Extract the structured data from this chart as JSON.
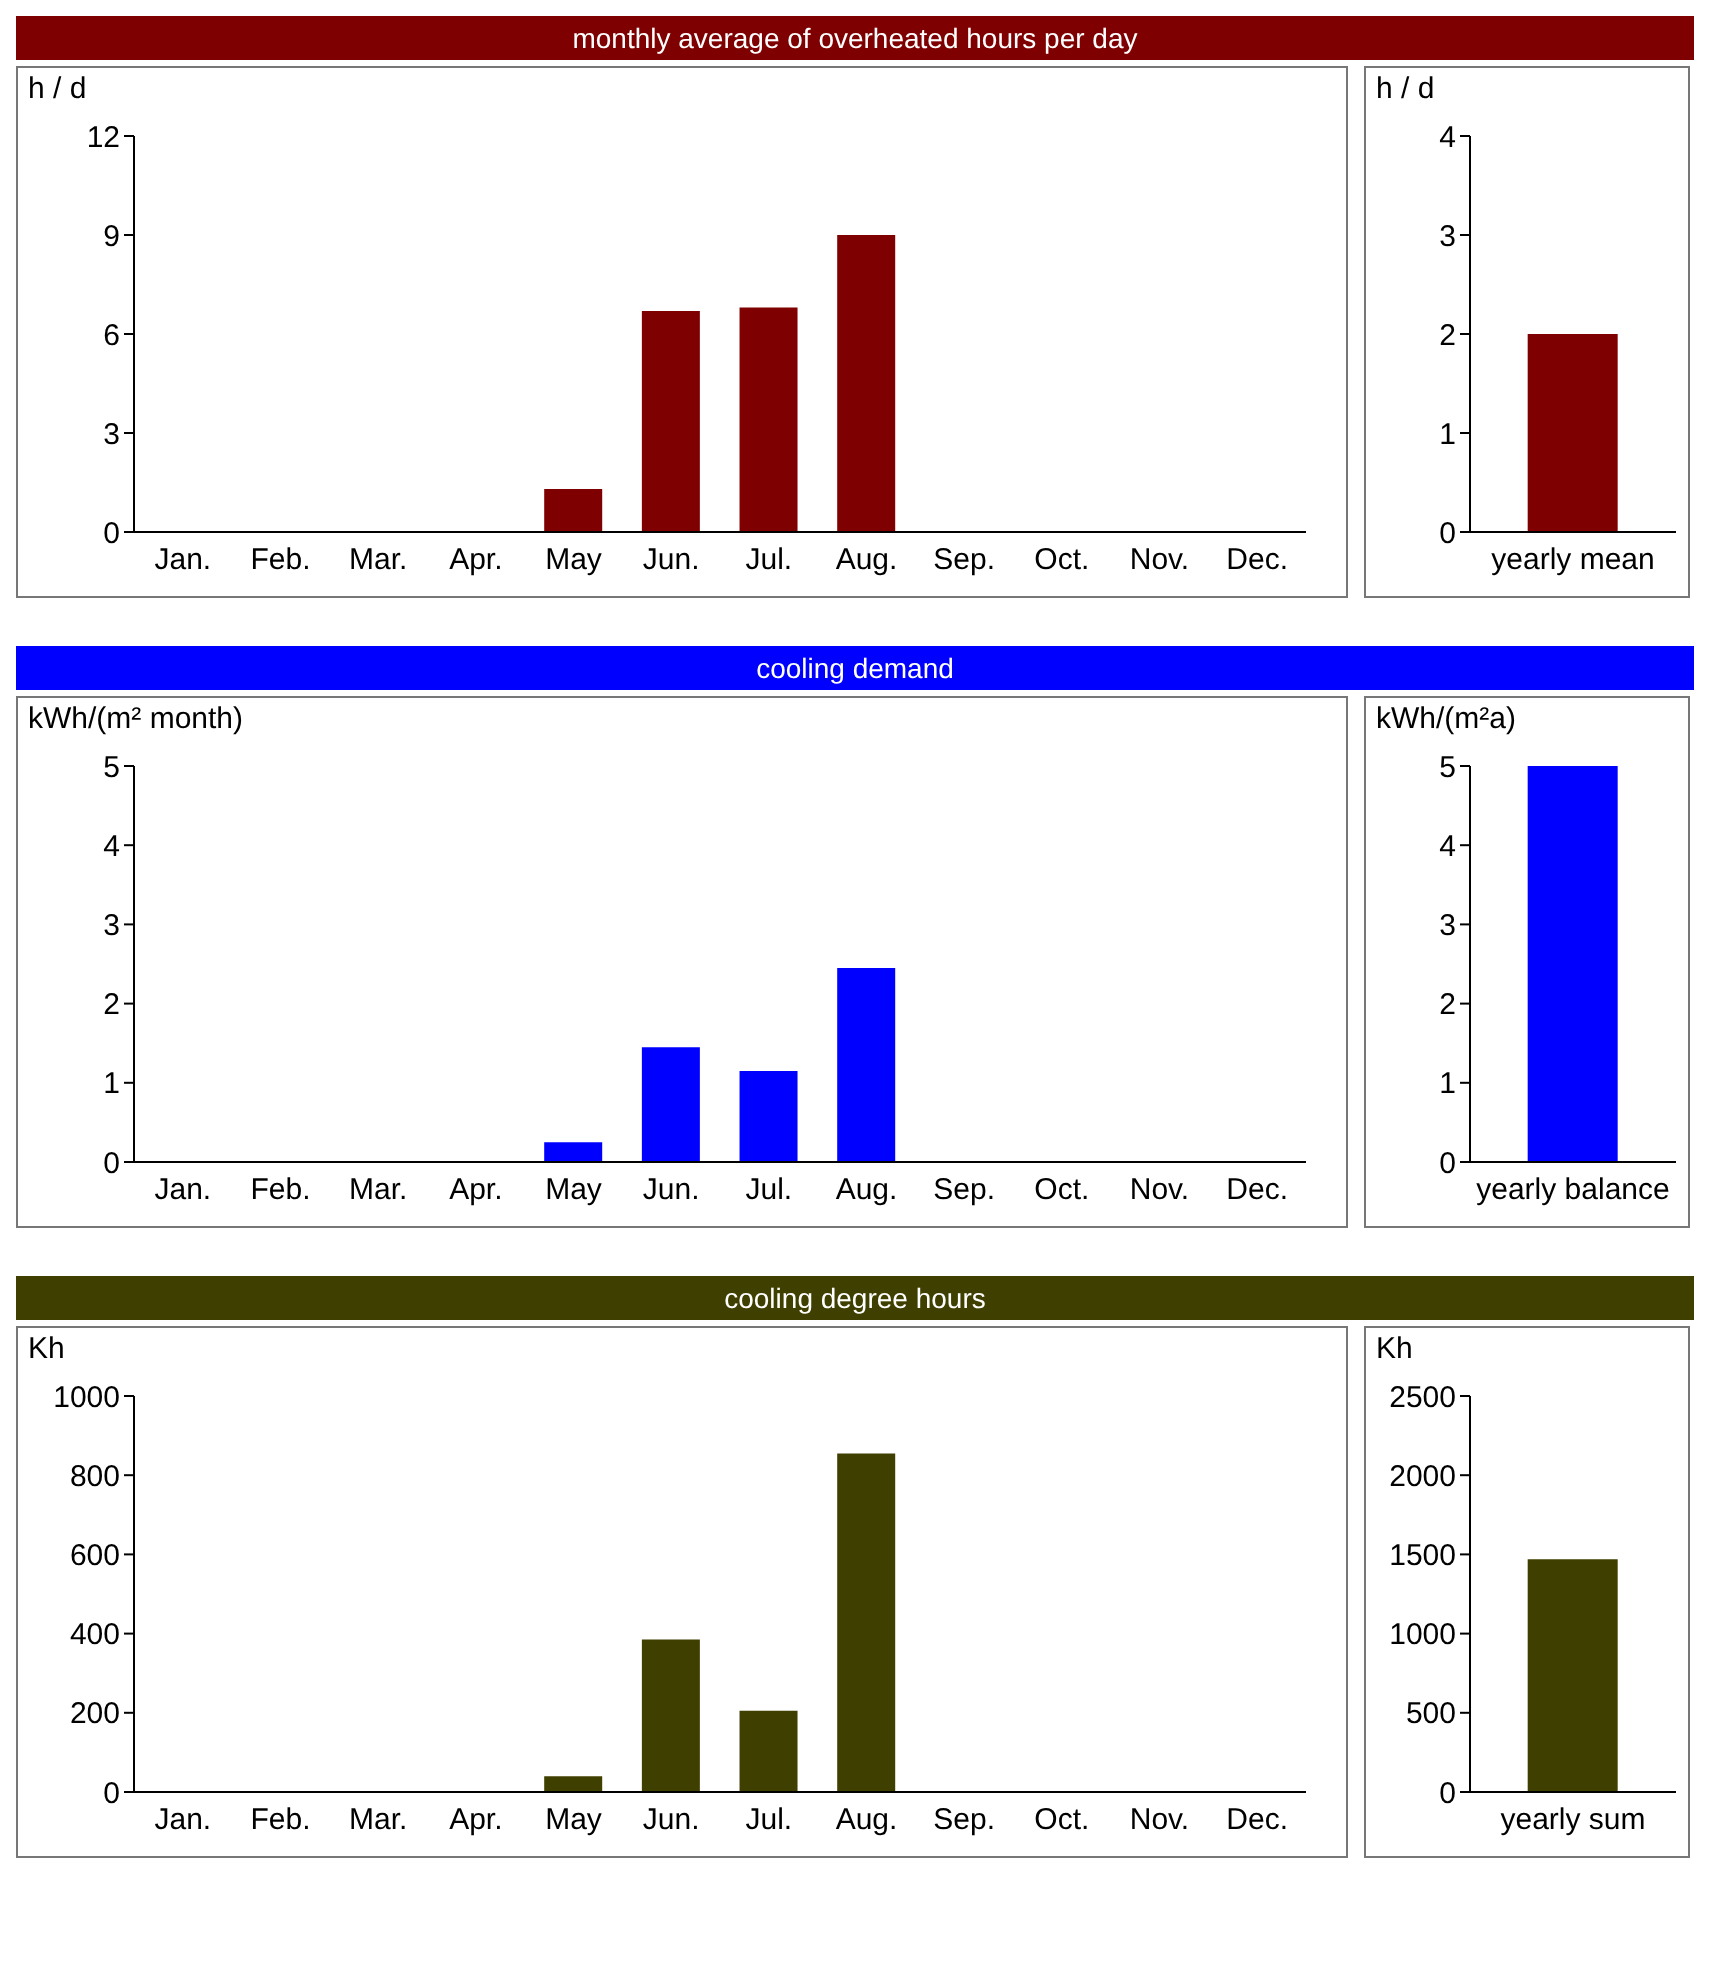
{
  "chart_data": [
    {
      "type": "bar",
      "title": "monthly average of overheated hours per day",
      "ylabel": "h / d",
      "categories": [
        "Jan.",
        "Feb.",
        "Mar.",
        "Apr.",
        "May",
        "Jun.",
        "Jul.",
        "Aug.",
        "Sep.",
        "Oct.",
        "Nov.",
        "Dec."
      ],
      "values": [
        0,
        0,
        0,
        0,
        1.3,
        6.7,
        6.8,
        9.0,
        0,
        0,
        0,
        0
      ],
      "color": "#7f0000",
      "ylim": [
        0,
        12
      ],
      "yticks": [
        0,
        3,
        6,
        9,
        12
      ]
    },
    {
      "type": "bar",
      "ylabel": "h / d",
      "categories": [
        "yearly mean"
      ],
      "values": [
        2.0
      ],
      "color": "#7f0000",
      "ylim": [
        0,
        4
      ],
      "yticks": [
        0,
        1,
        2,
        3,
        4
      ]
    },
    {
      "type": "bar",
      "title": "cooling demand",
      "ylabel": "kWh/(m² month)",
      "categories": [
        "Jan.",
        "Feb.",
        "Mar.",
        "Apr.",
        "May",
        "Jun.",
        "Jul.",
        "Aug.",
        "Sep.",
        "Oct.",
        "Nov.",
        "Dec."
      ],
      "values": [
        0,
        0,
        0,
        0,
        0.25,
        1.45,
        1.15,
        2.45,
        0,
        0,
        0,
        0
      ],
      "color": "#0000ff",
      "ylim": [
        0,
        5
      ],
      "yticks": [
        0,
        1,
        2,
        3,
        4,
        5
      ]
    },
    {
      "type": "bar",
      "ylabel": "kWh/(m²a)",
      "categories": [
        "yearly balance"
      ],
      "values": [
        5.0
      ],
      "color": "#0000ff",
      "ylim": [
        0,
        5
      ],
      "yticks": [
        0,
        1,
        2,
        3,
        4,
        5
      ]
    },
    {
      "type": "bar",
      "title": "cooling degree hours",
      "ylabel": "Kh",
      "categories": [
        "Jan.",
        "Feb.",
        "Mar.",
        "Apr.",
        "May",
        "Jun.",
        "Jul.",
        "Aug.",
        "Sep.",
        "Oct.",
        "Nov.",
        "Dec."
      ],
      "values": [
        0,
        0,
        0,
        0,
        40,
        385,
        205,
        855,
        0,
        0,
        0,
        0
      ],
      "color": "#3f3f00",
      "ylim": [
        0,
        1000
      ],
      "yticks": [
        0,
        200,
        400,
        600,
        800,
        1000
      ]
    },
    {
      "type": "bar",
      "ylabel": "Kh",
      "categories": [
        "yearly sum"
      ],
      "values": [
        1470
      ],
      "color": "#3f3f00",
      "ylim": [
        0,
        2500
      ],
      "yticks": [
        0,
        500,
        1000,
        1500,
        2000,
        2500
      ]
    }
  ]
}
